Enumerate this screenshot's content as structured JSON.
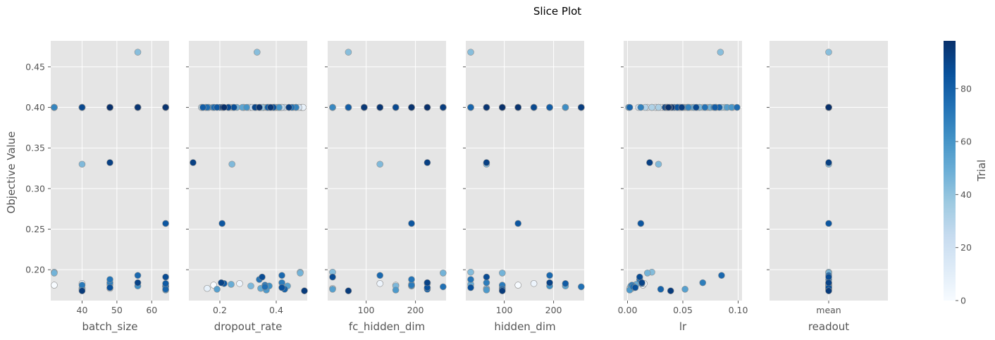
{
  "chart_data": {
    "type": "scatter",
    "title": "Slice Plot",
    "ylabel": "Objective Value",
    "ylim": [
      0.162,
      0.482
    ],
    "yticks": [
      0.2,
      0.25,
      0.3,
      0.35,
      0.4,
      0.45
    ],
    "ytick_labels": [
      "0.20",
      "0.25",
      "0.30",
      "0.35",
      "0.40",
      "0.45"
    ],
    "grid": true,
    "colorbar": {
      "label": "Trial",
      "range": [
        0,
        98
      ],
      "ticks": [
        0,
        20,
        40,
        60,
        80
      ],
      "tick_labels": [
        "0",
        "20",
        "40",
        "60",
        "80"
      ],
      "colormap": [
        "#f7fbff",
        "#deebf7",
        "#c6dbef",
        "#9ecae1",
        "#6baed6",
        "#4292c6",
        "#2171b5",
        "#08519c",
        "#08306b"
      ]
    },
    "points": [
      {
        "trial": 0,
        "value": 0.181
      },
      {
        "trial": 1,
        "value": 0.4
      },
      {
        "trial": 2,
        "value": 0.4
      },
      {
        "trial": 3,
        "value": 0.4
      },
      {
        "trial": 4,
        "value": 0.4
      },
      {
        "trial": 5,
        "value": 0.183
      },
      {
        "trial": 6,
        "value": 0.4
      },
      {
        "trial": 7,
        "value": 0.4
      },
      {
        "trial": 8,
        "value": 0.177
      },
      {
        "trial": 9,
        "value": 0.4
      },
      {
        "trial": 10,
        "value": 0.4
      },
      {
        "trial": 11,
        "value": 0.4
      },
      {
        "trial": 12,
        "value": 0.4
      },
      {
        "trial": 13,
        "value": 0.4
      },
      {
        "trial": 14,
        "value": 0.4
      },
      {
        "trial": 15,
        "value": 0.4
      },
      {
        "trial": 16,
        "value": 0.4
      },
      {
        "trial": 17,
        "value": 0.4
      },
      {
        "trial": 18,
        "value": 0.4
      },
      {
        "trial": 19,
        "value": 0.4
      },
      {
        "trial": 20,
        "value": 0.4
      },
      {
        "trial": 21,
        "value": 0.4
      },
      {
        "trial": 22,
        "value": 0.4
      },
      {
        "trial": 23,
        "value": 0.4
      },
      {
        "trial": 24,
        "value": 0.4
      },
      {
        "trial": 25,
        "value": 0.4
      },
      {
        "trial": 26,
        "value": 0.4
      },
      {
        "trial": 27,
        "value": 0.4
      },
      {
        "trial": 28,
        "value": 0.4
      },
      {
        "trial": 29,
        "value": 0.4
      },
      {
        "trial": 30,
        "value": 0.4
      },
      {
        "trial": 31,
        "value": 0.4
      },
      {
        "trial": 32,
        "value": 0.4
      },
      {
        "trial": 33,
        "value": 0.4
      },
      {
        "trial": 34,
        "value": 0.4
      },
      {
        "trial": 35,
        "value": 0.4
      },
      {
        "trial": 36,
        "value": 0.4
      },
      {
        "trial": 37,
        "value": 0.4
      },
      {
        "trial": 38,
        "value": 0.4
      },
      {
        "trial": 39,
        "value": 0.4
      },
      {
        "trial": 40,
        "value": 0.4
      },
      {
        "trial": 41,
        "value": 0.4
      },
      {
        "trial": 42,
        "value": 0.468
      },
      {
        "trial": 43,
        "value": 0.197
      },
      {
        "trial": 44,
        "value": 0.33
      },
      {
        "trial": 45,
        "value": 0.18
      },
      {
        "trial": 46,
        "value": 0.4
      },
      {
        "trial": 47,
        "value": 0.196
      },
      {
        "trial": 48,
        "value": 0.4
      },
      {
        "trial": 49,
        "value": 0.4
      },
      {
        "trial": 50,
        "value": 0.182
      },
      {
        "trial": 51,
        "value": 0.177
      },
      {
        "trial": 52,
        "value": 0.4
      },
      {
        "trial": 53,
        "value": 0.4
      },
      {
        "trial": 54,
        "value": 0.18
      },
      {
        "trial": 55,
        "value": 0.176
      },
      {
        "trial": 56,
        "value": 0.4
      },
      {
        "trial": 57,
        "value": 0.4
      },
      {
        "trial": 58,
        "value": 0.175
      },
      {
        "trial": 59,
        "value": 0.4
      },
      {
        "trial": 60,
        "value": 0.4
      },
      {
        "trial": 61,
        "value": 0.4
      },
      {
        "trial": 62,
        "value": 0.18
      },
      {
        "trial": 63,
        "value": 0.4
      },
      {
        "trial": 64,
        "value": 0.4
      },
      {
        "trial": 65,
        "value": 0.4
      },
      {
        "trial": 66,
        "value": 0.4
      },
      {
        "trial": 67,
        "value": 0.4
      },
      {
        "trial": 68,
        "value": 0.4
      },
      {
        "trial": 69,
        "value": 0.184
      },
      {
        "trial": 70,
        "value": 0.181
      },
      {
        "trial": 71,
        "value": 0.4
      },
      {
        "trial": 72,
        "value": 0.188
      },
      {
        "trial": 73,
        "value": 0.4
      },
      {
        "trial": 74,
        "value": 0.179
      },
      {
        "trial": 75,
        "value": 0.4
      },
      {
        "trial": 76,
        "value": 0.4
      },
      {
        "trial": 77,
        "value": 0.193
      },
      {
        "trial": 78,
        "value": 0.4
      },
      {
        "trial": 79,
        "value": 0.176
      },
      {
        "trial": 80,
        "value": 0.4
      },
      {
        "trial": 81,
        "value": 0.4
      },
      {
        "trial": 82,
        "value": 0.183
      },
      {
        "trial": 83,
        "value": 0.4
      },
      {
        "trial": 84,
        "value": 0.257
      },
      {
        "trial": 85,
        "value": 0.4
      },
      {
        "trial": 86,
        "value": 0.178
      },
      {
        "trial": 87,
        "value": 0.4
      },
      {
        "trial": 88,
        "value": 0.191
      },
      {
        "trial": 89,
        "value": 0.4
      },
      {
        "trial": 90,
        "value": 0.4
      },
      {
        "trial": 91,
        "value": 0.184
      },
      {
        "trial": 92,
        "value": 0.332
      },
      {
        "trial": 93,
        "value": 0.4
      },
      {
        "trial": 94,
        "value": 0.174
      },
      {
        "trial": 95,
        "value": 0.4
      },
      {
        "trial": 96,
        "value": 0.4
      },
      {
        "trial": 97,
        "value": 0.4
      },
      {
        "trial": 98,
        "value": 0.4
      }
    ],
    "panels": [
      {
        "xlabel": "batch_size",
        "xscale": "linear",
        "xlim": [
          31,
          65
        ],
        "xticks": [
          40,
          50,
          60
        ],
        "xtick_labels": [
          "40",
          "50",
          "60"
        ],
        "params": [
          32,
          32,
          40,
          48,
          56,
          40,
          64,
          32,
          48,
          64,
          40,
          56,
          48,
          64,
          32,
          40,
          56,
          64,
          48,
          32,
          40,
          48,
          56,
          64,
          32,
          40,
          48,
          56,
          64,
          48,
          40,
          32,
          56,
          64,
          48,
          40,
          56,
          64,
          32,
          48,
          56,
          64,
          56,
          32,
          40,
          64,
          48,
          32,
          40,
          56,
          48,
          40,
          64,
          48,
          64,
          40,
          56,
          48,
          64,
          32,
          40,
          48,
          56,
          64,
          48,
          40,
          32,
          56,
          64,
          48,
          40,
          64,
          48,
          56,
          64,
          40,
          48,
          56,
          48,
          64,
          40,
          56,
          64,
          48,
          64,
          40,
          48,
          56,
          64,
          40,
          48,
          56,
          48,
          64,
          40,
          48,
          56,
          64,
          48
        ]
      },
      {
        "xlabel": "dropout_rate",
        "xscale": "linear",
        "xlim": [
          0.09,
          0.51
        ],
        "xticks": [
          0.2,
          0.4
        ],
        "xtick_labels": [
          "0.2",
          "0.4"
        ],
        "params": [
          0.178,
          0.49,
          0.47,
          0.285,
          0.42,
          0.27,
          0.4,
          0.495,
          0.155,
          0.405,
          0.15,
          0.135,
          0.16,
          0.365,
          0.3,
          0.31,
          0.415,
          0.41,
          0.48,
          0.305,
          0.325,
          0.245,
          0.355,
          0.315,
          0.375,
          0.43,
          0.395,
          0.21,
          0.42,
          0.345,
          0.135,
          0.25,
          0.14,
          0.23,
          0.34,
          0.385,
          0.235,
          0.355,
          0.285,
          0.445,
          0.35,
          0.395,
          0.332,
          0.485,
          0.243,
          0.31,
          0.37,
          0.485,
          0.26,
          0.15,
          0.24,
          0.345,
          0.38,
          0.28,
          0.44,
          0.19,
          0.39,
          0.47,
          0.365,
          0.16,
          0.295,
          0.41,
          0.375,
          0.21,
          0.33,
          0.46,
          0.175,
          0.47,
          0.34,
          0.42,
          0.36,
          0.23,
          0.34,
          0.455,
          0.36,
          0.155,
          0.18,
          0.42,
          0.2,
          0.43,
          0.37,
          0.14,
          0.215,
          0.19,
          0.208,
          0.39,
          0.42,
          0.25,
          0.35,
          0.23,
          0.325,
          0.205,
          0.105,
          0.445,
          0.5,
          0.38,
          0.21,
          0.34,
          0.215
        ]
      },
      {
        "xlabel": "fc_hidden_dim",
        "xscale": "linear",
        "xlim": [
          22,
          262
        ],
        "xticks": [
          100,
          200
        ],
        "xtick_labels": [
          "100",
          "200"
        ],
        "params": [
          160,
          256,
          64,
          96,
          32,
          128,
          160,
          192,
          32,
          64,
          96,
          128,
          160,
          192,
          224,
          256,
          32,
          64,
          96,
          128,
          160,
          192,
          224,
          256,
          64,
          96,
          128,
          160,
          192,
          224,
          256,
          32,
          64,
          96,
          128,
          160,
          192,
          224,
          256,
          32,
          64,
          96,
          64,
          32,
          128,
          160,
          64,
          256,
          96,
          128,
          192,
          224,
          256,
          160,
          192,
          32,
          128,
          256,
          160,
          64,
          96,
          128,
          192,
          224,
          256,
          32,
          64,
          96,
          160,
          224,
          192,
          160,
          192,
          224,
          256,
          64,
          96,
          128,
          192,
          224,
          160,
          64,
          224,
          192,
          192,
          96,
          224,
          128,
          32,
          160,
          192,
          224,
          224,
          256,
          64,
          96,
          128,
          192,
          224
        ]
      },
      {
        "xlabel": "hidden_dim",
        "xscale": "linear",
        "xlim": [
          22,
          262
        ],
        "xticks": [
          100,
          200
        ],
        "xtick_labels": [
          "100",
          "200"
        ],
        "params": [
          128,
          224,
          32,
          128,
          96,
          160,
          160,
          32,
          64,
          224,
          96,
          128,
          160,
          192,
          224,
          256,
          32,
          64,
          96,
          128,
          160,
          192,
          224,
          256,
          32,
          96,
          128,
          160,
          192,
          224,
          256,
          64,
          96,
          128,
          160,
          192,
          224,
          256,
          64,
          32,
          96,
          128,
          32,
          32,
          64,
          96,
          64,
          96,
          128,
          160,
          32,
          96,
          256,
          96,
          224,
          64,
          128,
          192,
          64,
          160,
          96,
          128,
          192,
          224,
          256,
          32,
          64,
          96,
          160,
          64,
          96,
          96,
          32,
          64,
          256,
          96,
          128,
          192,
          32,
          96,
          160,
          192,
          224,
          64,
          128,
          96,
          32,
          128,
          64,
          160,
          96,
          192,
          64,
          256,
          96,
          128,
          64,
          128,
          96
        ]
      },
      {
        "xlabel": "lr",
        "xscale": "linear",
        "xlim": [
          -0.0035,
          0.1035
        ],
        "xticks": [
          0.0,
          0.05,
          0.1
        ],
        "xtick_labels": [
          "0.00",
          "0.05",
          "0.10"
        ],
        "params": [
          0.014,
          0.022,
          0.06,
          0.028,
          0.045,
          0.015,
          0.05,
          0.04,
          0.002,
          0.065,
          0.032,
          0.03,
          0.052,
          0.026,
          0.036,
          0.018,
          0.047,
          0.072,
          0.055,
          0.025,
          0.08,
          0.01,
          0.058,
          0.04,
          0.034,
          0.063,
          0.07,
          0.074,
          0.045,
          0.068,
          0.016,
          0.095,
          0.022,
          0.028,
          0.05,
          0.088,
          0.054,
          0.085,
          0.045,
          0.048,
          0.056,
          0.042,
          0.084,
          0.022,
          0.028,
          0.006,
          0.065,
          0.018,
          0.075,
          0.062,
          0.008,
          0.004,
          0.06,
          0.001,
          0.003,
          0.052,
          0.09,
          0.054,
          0.002,
          0.094,
          0.043,
          0.047,
          0.005,
          0.08,
          0.05,
          0.038,
          0.078,
          0.055,
          0.012,
          0.068,
          0.004,
          0.046,
          0.011,
          0.07,
          0.005,
          0.099,
          0.042,
          0.085,
          0.002,
          0.03,
          0.083,
          0.079,
          0.013,
          0.036,
          0.012,
          0.045,
          0.007,
          0.035,
          0.011,
          0.062,
          0.034,
          0.013,
          0.02,
          0.049,
          0.039,
          0.036,
          0.04,
          0.038,
          0.037
        ]
      },
      {
        "xlabel": "readout",
        "xscale": "categorical",
        "xlim": [
          -0.5,
          0.5
        ],
        "xticks": [
          0
        ],
        "xtick_labels": [
          "mean"
        ],
        "params": [
          0,
          0,
          0,
          0,
          0,
          0,
          0,
          0,
          0,
          0,
          0,
          0,
          0,
          0,
          0,
          0,
          0,
          0,
          0,
          0,
          0,
          0,
          0,
          0,
          0,
          0,
          0,
          0,
          0,
          0,
          0,
          0,
          0,
          0,
          0,
          0,
          0,
          0,
          0,
          0,
          0,
          0,
          0,
          0,
          0,
          0,
          0,
          0,
          0,
          0,
          0,
          0,
          0,
          0,
          0,
          0,
          0,
          0,
          0,
          0,
          0,
          0,
          0,
          0,
          0,
          0,
          0,
          0,
          0,
          0,
          0,
          0,
          0,
          0,
          0,
          0,
          0,
          0,
          0,
          0,
          0,
          0,
          0,
          0,
          0,
          0,
          0,
          0,
          0,
          0,
          0,
          0,
          0,
          0,
          0,
          0,
          0,
          0,
          0
        ]
      }
    ]
  }
}
